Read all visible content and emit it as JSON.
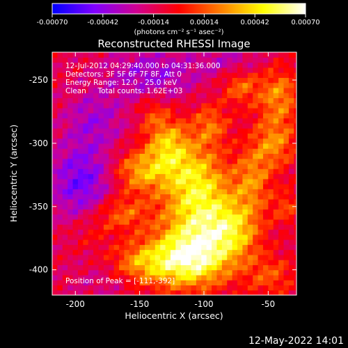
{
  "chart_data": {
    "type": "heatmap",
    "title": "Reconstructed RHESSI Image",
    "xlabel": "Heliocentric X (arcsec)",
    "ylabel": "Heliocentric Y (arcsec)",
    "xlim": [
      -218,
      -28
    ],
    "ylim": [
      -420,
      -228
    ],
    "xticks": [
      -200,
      -150,
      -100,
      -50
    ],
    "yticks": [
      -400,
      -350,
      -300,
      -250
    ],
    "colorbar": {
      "ticks": [
        "-0.00070",
        "-0.00042",
        "-0.00014",
        "0.00014",
        "0.00042",
        "0.00070"
      ],
      "label": "(photons cm⁻² s⁻¹ asec⁻²)",
      "range": [
        -0.0007,
        0.0007
      ],
      "colors": [
        "#0000ff",
        "#8000ff",
        "#d00090",
        "#ff0000",
        "#ff8000",
        "#ffff00",
        "#ffffff"
      ]
    },
    "annotations": [
      "12-Jul-2012 04:29:40.000 to 04:31:36.000",
      "Detectors: 3F 5F 6F 7F 8F, Att 0",
      "Energy Range: 12.0 - 25.0 keV",
      "Clean     Total counts: 1.62E+03"
    ],
    "peak_label": "Position of Peak = [-111,-392]",
    "peak": {
      "x": -111,
      "y": -392
    },
    "emission": [
      {
        "x": -112,
        "y": -392,
        "sx": 22,
        "sy": 16,
        "a": 0.0007
      },
      {
        "x": -100,
        "y": -360,
        "sx": 22,
        "sy": 20,
        "a": 0.00052
      },
      {
        "x": -108,
        "y": -325,
        "sx": 18,
        "sy": 18,
        "a": 0.00045
      },
      {
        "x": -128,
        "y": -300,
        "sx": 12,
        "sy": 15,
        "a": 0.00042
      },
      {
        "x": -150,
        "y": -322,
        "sx": 15,
        "sy": 12,
        "a": 0.0004
      },
      {
        "x": -165,
        "y": -355,
        "sx": 15,
        "sy": 10,
        "a": 0.0003
      },
      {
        "x": -150,
        "y": -395,
        "sx": 16,
        "sy": 12,
        "a": 0.00032
      },
      {
        "x": -75,
        "y": -370,
        "sx": 14,
        "sy": 16,
        "a": 0.0003
      },
      {
        "x": -62,
        "y": -328,
        "sx": 10,
        "sy": 18,
        "a": 0.00032
      },
      {
        "x": -45,
        "y": -300,
        "sx": 12,
        "sy": 14,
        "a": 0.00034
      },
      {
        "x": -42,
        "y": -262,
        "sx": 12,
        "sy": 16,
        "a": 0.00036
      },
      {
        "x": -72,
        "y": -255,
        "sx": 10,
        "sy": 10,
        "a": 0.00028
      },
      {
        "x": -95,
        "y": -285,
        "sx": 10,
        "sy": 12,
        "a": 0.0003
      },
      {
        "x": -140,
        "y": -275,
        "sx": 8,
        "sy": 10,
        "a": 0.00018
      },
      {
        "x": -48,
        "y": -405,
        "sx": 14,
        "sy": 12,
        "a": 0.00024
      },
      {
        "x": -35,
        "y": -350,
        "sx": 8,
        "sy": 10,
        "a": 0.00022
      },
      {
        "x": -190,
        "y": -370,
        "sx": 12,
        "sy": 10,
        "a": 0.00012
      }
    ],
    "negative": [
      {
        "x": -195,
        "y": -330,
        "sx": 18,
        "sy": 22,
        "a": -0.00036
      },
      {
        "x": -140,
        "y": -245,
        "sx": 25,
        "sy": 14,
        "a": -0.00026
      },
      {
        "x": -185,
        "y": -280,
        "sx": 16,
        "sy": 16,
        "a": -0.00022
      },
      {
        "x": -80,
        "y": -235,
        "sx": 18,
        "sy": 8,
        "a": -0.00016
      },
      {
        "x": -175,
        "y": -410,
        "sx": 20,
        "sy": 10,
        "a": -0.0001
      }
    ],
    "baseline": -0.00012,
    "texture": 9e-05,
    "clip": [
      -0.00062,
      0.0007
    ]
  },
  "timestamp": "12-May-2022 14:01"
}
